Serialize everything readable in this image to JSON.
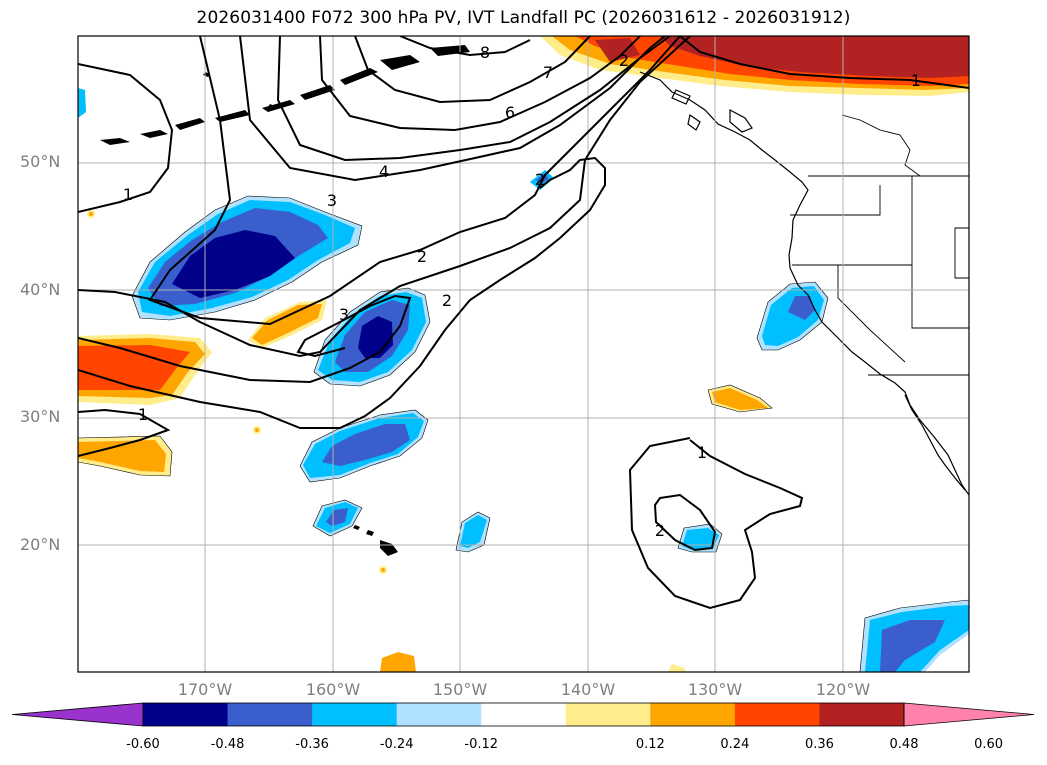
{
  "title": "2026031400 F072 300 hPa PV, IVT Landfall PC (2026031612 - 2026031912)",
  "map": {
    "lat_labels": [
      "50°N",
      "40°N",
      "30°N",
      "20°N"
    ],
    "lon_labels": [
      "170°W",
      "160°W",
      "150°W",
      "140°W",
      "130°W",
      "120°W"
    ],
    "contour_labels": [
      "8",
      "7",
      "6",
      "4",
      "3",
      "2",
      "2",
      "3",
      "1",
      "1",
      "1",
      "2",
      "1",
      "2",
      "2"
    ]
  },
  "colorbar": {
    "ticks": [
      "-0.60",
      "-0.48",
      "-0.36",
      "-0.24",
      "-0.12",
      "0.12",
      "0.24",
      "0.36",
      "0.48",
      "0.60"
    ],
    "colors": [
      "#9a32cd",
      "#00008b",
      "#3a5fcd",
      "#00bfff",
      "#b0e2ff",
      "#ffffff",
      "#ffec8b",
      "#ffa500",
      "#ff4500",
      "#b22222",
      "#ff82ab"
    ]
  }
}
